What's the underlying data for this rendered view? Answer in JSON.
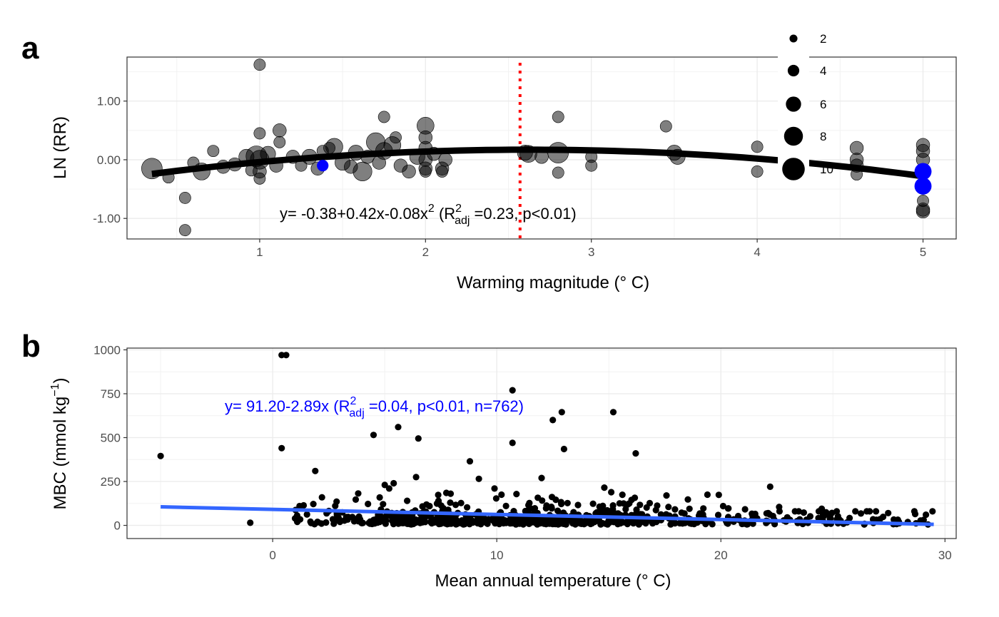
{
  "chart_data": [
    {
      "type": "scatter",
      "panel_label": "a",
      "xlabel": "Warming magnitude (° C)",
      "ylabel": "LN (RR)",
      "xlim": [
        0.2,
        5.2
      ],
      "ylim": [
        -1.35,
        1.75
      ],
      "xticks": [
        1,
        2,
        3,
        4,
        5
      ],
      "xtick_labels": [
        "1",
        "2",
        "3",
        "4",
        "5"
      ],
      "yticks": [
        -1.0,
        0.0,
        1.0
      ],
      "ytick_labels": [
        "-1.00",
        "0.00",
        "1.00"
      ],
      "grid": true,
      "vline": {
        "x": 2.57,
        "color": "#ff0000",
        "style": "dotted"
      },
      "fit_curve": {
        "intercept": -0.38,
        "b1": 0.42,
        "b2": -0.08,
        "x_range": [
          0.35,
          5.0
        ],
        "color": "#000000"
      },
      "equation": {
        "prefix": "y= -0.38+0.42x-0.08x",
        "exp": "2",
        "open": " (R",
        "sup": "2",
        "sub": "adj",
        "rest": " =0.23, p<0.01)"
      },
      "size_legend": {
        "placement": "top-right",
        "entries": [
          2,
          4,
          6,
          8,
          10
        ],
        "labels": [
          "2",
          "4",
          "6",
          "8",
          "10"
        ]
      },
      "points": [
        {
          "x": 0.35,
          "y": -0.15,
          "s": 9
        },
        {
          "x": 0.45,
          "y": -0.3,
          "s": 4
        },
        {
          "x": 0.55,
          "y": -0.65,
          "s": 4
        },
        {
          "x": 0.55,
          "y": -1.2,
          "s": 4
        },
        {
          "x": 0.6,
          "y": -0.05,
          "s": 4
        },
        {
          "x": 0.65,
          "y": -0.2,
          "s": 7
        },
        {
          "x": 0.72,
          "y": 0.15,
          "s": 4
        },
        {
          "x": 0.78,
          "y": -0.12,
          "s": 5
        },
        {
          "x": 0.85,
          "y": -0.08,
          "s": 5
        },
        {
          "x": 0.92,
          "y": 0.05,
          "s": 6
        },
        {
          "x": 0.95,
          "y": -0.18,
          "s": 4
        },
        {
          "x": 0.98,
          "y": 0.06,
          "s": 9
        },
        {
          "x": 1.0,
          "y": 1.62,
          "s": 4
        },
        {
          "x": 1.0,
          "y": 0.45,
          "s": 4
        },
        {
          "x": 1.0,
          "y": 0.0,
          "s": 8
        },
        {
          "x": 1.0,
          "y": -0.2,
          "s": 5
        },
        {
          "x": 1.0,
          "y": -0.32,
          "s": 4
        },
        {
          "x": 1.05,
          "y": 0.1,
          "s": 6
        },
        {
          "x": 1.1,
          "y": -0.1,
          "s": 5
        },
        {
          "x": 1.12,
          "y": 0.5,
          "s": 5
        },
        {
          "x": 1.12,
          "y": 0.3,
          "s": 4
        },
        {
          "x": 1.2,
          "y": 0.05,
          "s": 5
        },
        {
          "x": 1.25,
          "y": -0.1,
          "s": 4
        },
        {
          "x": 1.3,
          "y": 0.05,
          "s": 6
        },
        {
          "x": 1.35,
          "y": -0.15,
          "s": 5
        },
        {
          "x": 1.38,
          "y": 0.15,
          "s": 4
        },
        {
          "x": 1.42,
          "y": 0.2,
          "s": 4
        },
        {
          "x": 1.45,
          "y": 0.22,
          "s": 7
        },
        {
          "x": 1.5,
          "y": -0.05,
          "s": 6
        },
        {
          "x": 1.55,
          "y": -0.12,
          "s": 5
        },
        {
          "x": 1.58,
          "y": 0.12,
          "s": 6
        },
        {
          "x": 1.62,
          "y": -0.2,
          "s": 8
        },
        {
          "x": 1.65,
          "y": 0.05,
          "s": 5
        },
        {
          "x": 1.7,
          "y": 0.3,
          "s": 8
        },
        {
          "x": 1.72,
          "y": -0.05,
          "s": 5
        },
        {
          "x": 1.75,
          "y": 0.73,
          "s": 4
        },
        {
          "x": 1.75,
          "y": 0.15,
          "s": 7
        },
        {
          "x": 1.8,
          "y": 0.25,
          "s": 7
        },
        {
          "x": 1.82,
          "y": 0.38,
          "s": 4
        },
        {
          "x": 1.85,
          "y": -0.1,
          "s": 5
        },
        {
          "x": 1.9,
          "y": -0.2,
          "s": 5
        },
        {
          "x": 1.95,
          "y": 0.05,
          "s": 6
        },
        {
          "x": 2.0,
          "y": 0.58,
          "s": 7
        },
        {
          "x": 2.0,
          "y": 0.38,
          "s": 5
        },
        {
          "x": 2.0,
          "y": 0.2,
          "s": 5
        },
        {
          "x": 2.0,
          "y": 0.0,
          "s": 5
        },
        {
          "x": 2.0,
          "y": -0.15,
          "s": 5
        },
        {
          "x": 2.0,
          "y": -0.2,
          "s": 4
        },
        {
          "x": 2.05,
          "y": 0.1,
          "s": 5
        },
        {
          "x": 2.1,
          "y": -0.15,
          "s": 5
        },
        {
          "x": 2.1,
          "y": -0.2,
          "s": 4
        },
        {
          "x": 2.12,
          "y": 0.0,
          "s": 5
        },
        {
          "x": 2.6,
          "y": 0.12,
          "s": 6
        },
        {
          "x": 2.62,
          "y": 0.1,
          "s": 7
        },
        {
          "x": 2.7,
          "y": 0.05,
          "s": 5
        },
        {
          "x": 2.8,
          "y": 0.73,
          "s": 4
        },
        {
          "x": 2.8,
          "y": 0.12,
          "s": 9
        },
        {
          "x": 2.8,
          "y": -0.22,
          "s": 4
        },
        {
          "x": 3.0,
          "y": 0.05,
          "s": 4
        },
        {
          "x": 3.0,
          "y": -0.1,
          "s": 4
        },
        {
          "x": 3.45,
          "y": 0.57,
          "s": 4
        },
        {
          "x": 3.5,
          "y": 0.12,
          "s": 6
        },
        {
          "x": 3.52,
          "y": 0.05,
          "s": 6
        },
        {
          "x": 4.0,
          "y": 0.22,
          "s": 4
        },
        {
          "x": 4.0,
          "y": -0.2,
          "s": 4
        },
        {
          "x": 4.6,
          "y": 0.2,
          "s": 5
        },
        {
          "x": 4.6,
          "y": 0.0,
          "s": 5
        },
        {
          "x": 4.6,
          "y": -0.1,
          "s": 5
        },
        {
          "x": 4.6,
          "y": -0.25,
          "s": 4
        },
        {
          "x": 5.0,
          "y": 0.25,
          "s": 5
        },
        {
          "x": 5.0,
          "y": 0.15,
          "s": 5
        },
        {
          "x": 5.0,
          "y": 0.0,
          "s": 5
        },
        {
          "x": 5.0,
          "y": -0.2,
          "s": 4
        },
        {
          "x": 5.0,
          "y": -0.45,
          "s": 5
        },
        {
          "x": 5.0,
          "y": -0.7,
          "s": 4
        },
        {
          "x": 5.0,
          "y": -0.85,
          "s": 5
        },
        {
          "x": 5.0,
          "y": -0.88,
          "s": 5
        }
      ],
      "highlight_points": [
        {
          "x": 1.38,
          "y": -0.1,
          "s": 4
        },
        {
          "x": 5.0,
          "y": -0.2,
          "s": 7
        },
        {
          "x": 5.0,
          "y": -0.45,
          "s": 7
        }
      ],
      "highlight_color": "#0000ff"
    },
    {
      "type": "scatter",
      "panel_label": "b",
      "xlabel": "Mean annual temperature (° C)",
      "ylabel_main": "MBC (mmol kg",
      "ylabel_sup": "−1",
      "ylabel_close": ")",
      "xlim": [
        -6.5,
        30.5
      ],
      "ylim": [
        -75,
        1010
      ],
      "xticks": [
        0,
        10,
        20,
        30
      ],
      "xtick_labels": [
        "0",
        "10",
        "20",
        "30"
      ],
      "yticks": [
        0,
        250,
        500,
        750,
        1000
      ],
      "ytick_labels": [
        "0",
        "250",
        "500",
        "750",
        "1000"
      ],
      "grid": true,
      "fit_line": {
        "intercept": 91.2,
        "slope": -2.89,
        "x_range": [
          -5,
          29.5
        ],
        "color": "#3366ff"
      },
      "equation": {
        "prefix": "y= 91.20-2.89x (R",
        "sup": "2",
        "sub": "adj",
        "rest": " =0.04, p<0.01, n=762)",
        "color": "#0000ff"
      },
      "n_points": 762,
      "points": [
        [
          -5,
          395
        ],
        [
          -1,
          15
        ],
        [
          0.4,
          970
        ],
        [
          0.6,
          970
        ],
        [
          0.4,
          440
        ],
        [
          1.9,
          310
        ],
        [
          2.2,
          160
        ],
        [
          1.2,
          110
        ],
        [
          1.0,
          40
        ],
        [
          2.0,
          20
        ],
        [
          2.8,
          30
        ],
        [
          3.0,
          20
        ],
        [
          4.5,
          515
        ],
        [
          5.6,
          560
        ],
        [
          6.5,
          495
        ],
        [
          5.2,
          210
        ],
        [
          5.0,
          230
        ],
        [
          5.4,
          240
        ],
        [
          6.4,
          275
        ],
        [
          6.0,
          140
        ],
        [
          7.0,
          110
        ],
        [
          7.4,
          140
        ],
        [
          8.8,
          365
        ],
        [
          9.2,
          265
        ],
        [
          9.9,
          210
        ],
        [
          10.7,
          770
        ],
        [
          10.7,
          470
        ],
        [
          12.0,
          270
        ],
        [
          12.5,
          600
        ],
        [
          12.9,
          645
        ],
        [
          13.0,
          435
        ],
        [
          14.8,
          215
        ],
        [
          15.2,
          645
        ],
        [
          16.2,
          410
        ],
        [
          19.4,
          175
        ],
        [
          22.2,
          220
        ],
        [
          22.6,
          105
        ],
        [
          20.1,
          110
        ],
        [
          24.5,
          95
        ],
        [
          26.0,
          80
        ]
      ]
    }
  ]
}
